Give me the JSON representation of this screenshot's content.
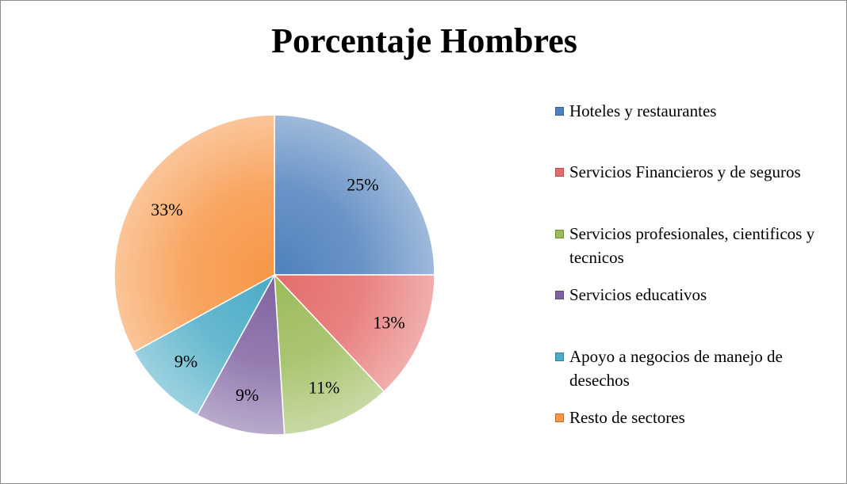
{
  "chart_data": {
    "type": "pie",
    "title": "Porcentaje Hombres",
    "categories": [
      "Hoteles y restaurantes",
      "Servicios Financieros y de seguros",
      "Servicios profesionales, cientificos y tecnicos",
      "Servicios educativos",
      "Apoyo a negocios de manejo de desechos",
      "Resto de sectores"
    ],
    "values": [
      25,
      13,
      11,
      9,
      9,
      33
    ],
    "value_labels": [
      "25%",
      "13%",
      "11%",
      "9%",
      "9%",
      "33%"
    ],
    "colors": [
      "#4f81bd",
      "#e46c6a",
      "#9bbb59",
      "#8064a2",
      "#4bacc6",
      "#f79646"
    ],
    "legend": "right"
  }
}
